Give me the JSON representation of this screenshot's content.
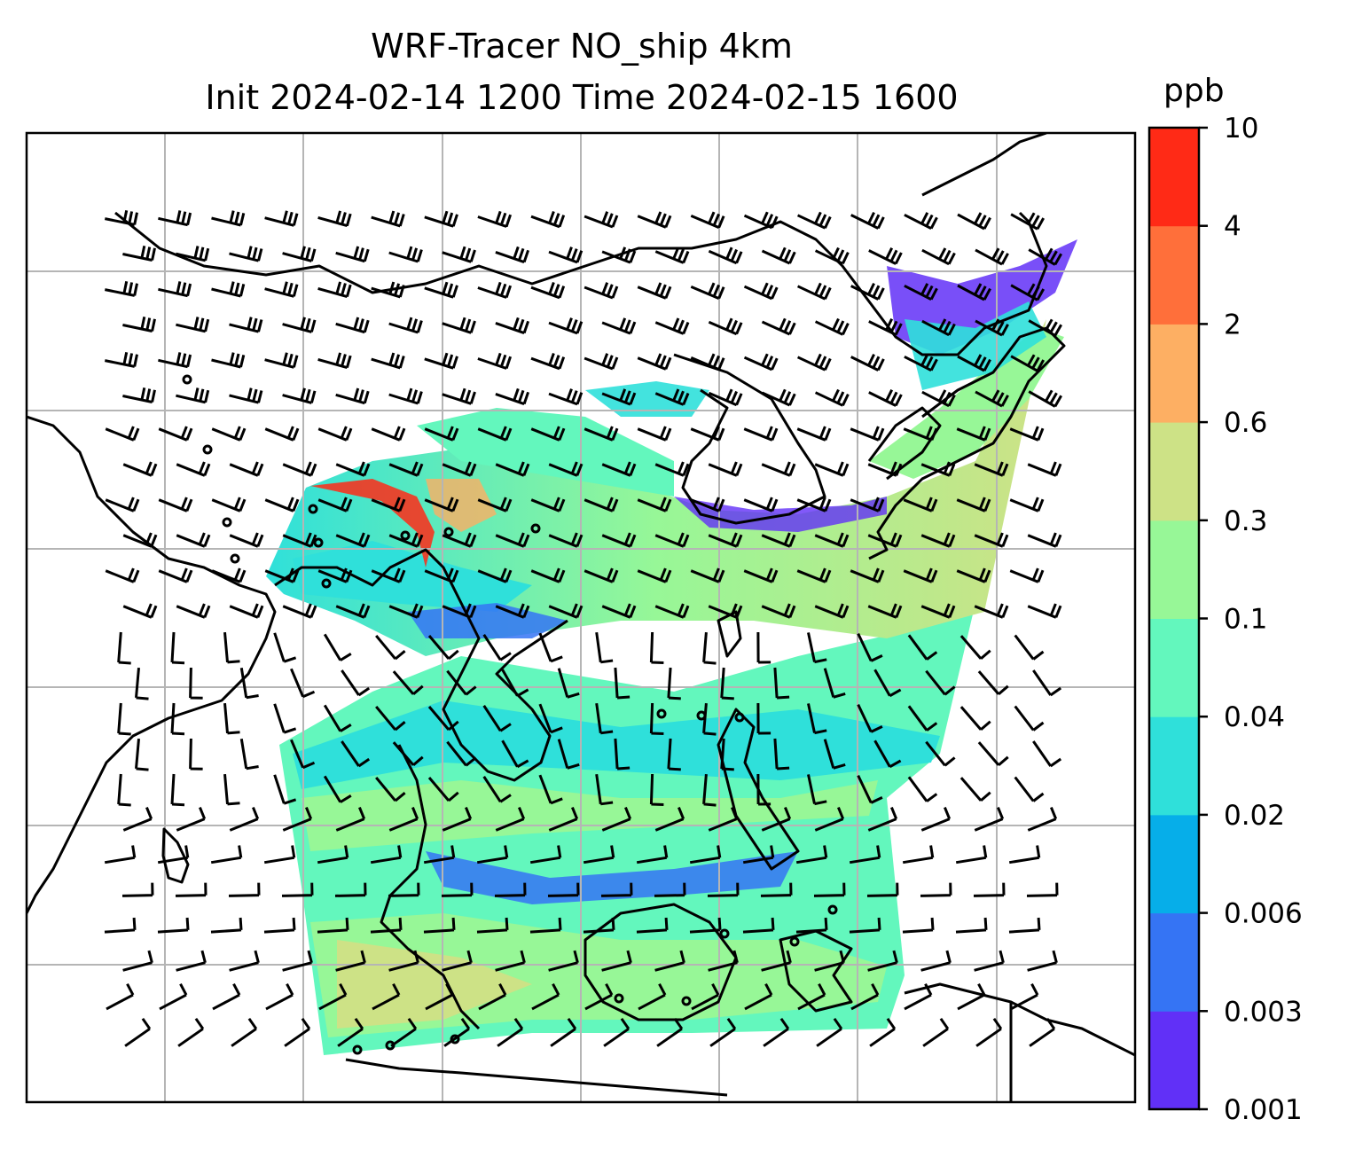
{
  "title": {
    "line1": "WRF-Tracer NO_ship 4km",
    "line2": "Init 2024-02-14 1200 Time 2024-02-15 1600"
  },
  "colorbar": {
    "unit": "ppb",
    "levels": [
      "0.001",
      "0.003",
      "0.006",
      "0.02",
      "0.04",
      "0.1",
      "0.3",
      "0.6",
      "2",
      "4",
      "10"
    ],
    "colors": [
      "#6130f7",
      "#3574f4",
      "#06aee9",
      "#2fe0da",
      "#63f7bd",
      "#97f797",
      "#cde286",
      "#fdaf63",
      "#ff6f3a",
      "#ff2a16"
    ]
  },
  "map": {
    "gridlines": true,
    "coastline_color": "#000000",
    "wind_barbs": true
  }
}
